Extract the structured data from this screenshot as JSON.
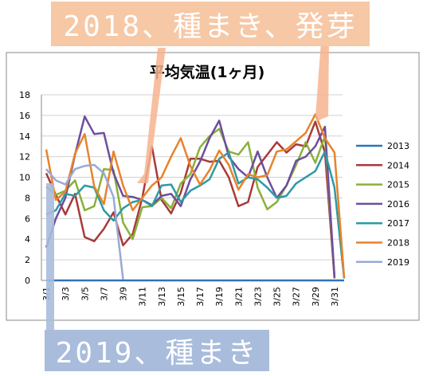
{
  "annotations": {
    "top": "2018、種まき、発芽",
    "bottom": "2019、種まき"
  },
  "chart_data": {
    "type": "line",
    "title": "平均気温(1ヶ月)",
    "xlabel": "",
    "ylabel": "",
    "ylim": [
      0,
      18
    ],
    "yticks": [
      0,
      2,
      4,
      6,
      8,
      10,
      12,
      14,
      16,
      18
    ],
    "grid": true,
    "legend": "right",
    "x": [
      "3/1",
      "3/2",
      "3/3",
      "3/4",
      "3/5",
      "3/6",
      "3/7",
      "3/8",
      "3/9",
      "3/10",
      "3/11",
      "3/12",
      "3/13",
      "3/14",
      "3/15",
      "3/16",
      "3/17",
      "3/18",
      "3/19",
      "3/20",
      "3/21",
      "3/22",
      "3/23",
      "3/24",
      "3/25",
      "3/26",
      "3/27",
      "3/28",
      "3/29",
      "3/30",
      "3/31",
      "4/1"
    ],
    "x_tick_labels": [
      "3/1",
      "3/3",
      "3/5",
      "3/7",
      "3/9",
      "3/11",
      "3/13",
      "3/15",
      "3/17",
      "3/19",
      "3/21",
      "3/23",
      "3/25",
      "3/27",
      "3/29",
      "3/31"
    ],
    "series": [
      {
        "name": "2013",
        "color": "#2e74b5",
        "values": [
          0,
          0,
          0,
          0,
          0,
          0,
          0,
          0,
          0,
          0,
          0,
          0,
          0,
          0,
          0,
          0,
          0,
          0,
          0,
          0,
          0,
          0,
          0,
          0,
          0,
          0,
          0,
          0,
          0,
          0,
          0,
          0
        ]
      },
      {
        "name": "2014",
        "color": "#a83a3a",
        "values": [
          10.4,
          8.3,
          6.4,
          8.4,
          4.2,
          3.8,
          5.0,
          6.6,
          3.4,
          4.5,
          8.0,
          13.0,
          7.8,
          6.5,
          8.5,
          11.8,
          11.8,
          11.5,
          11.6,
          10.0,
          7.2,
          7.6,
          11.0,
          12.2,
          13.4,
          12.4,
          13.2,
          13.0,
          15.4,
          12.4,
          0.2,
          null
        ]
      },
      {
        "name": "2015",
        "color": "#8ab03a",
        "values": [
          9.1,
          8.3,
          8.7,
          9.7,
          6.8,
          7.2,
          10.8,
          10.7,
          5.6,
          4.0,
          7.1,
          7.2,
          8.0,
          7.0,
          9.4,
          10.3,
          12.9,
          14.0,
          14.7,
          12.5,
          12.2,
          13.4,
          9.0,
          6.9,
          7.6,
          9.2,
          11.2,
          13.4,
          11.4,
          14.0,
          0.3,
          null
        ]
      },
      {
        "name": "2016",
        "color": "#6d4e9c",
        "values": [
          3.2,
          6.0,
          8.0,
          12.2,
          15.9,
          14.2,
          14.3,
          10.4,
          8.2,
          8.1,
          7.8,
          7.3,
          8.2,
          8.4,
          7.2,
          9.8,
          11.5,
          13.8,
          15.5,
          12.0,
          10.8,
          10.0,
          12.5,
          10.0,
          8.0,
          9.2,
          11.6,
          12.0,
          13.0,
          14.9,
          0.3,
          null
        ]
      },
      {
        "name": "2017",
        "color": "#2e9aa6",
        "values": [
          6.4,
          6.8,
          8.4,
          8.2,
          9.2,
          9.0,
          6.8,
          5.8,
          7.0,
          7.6,
          7.8,
          7.2,
          9.2,
          9.3,
          7.6,
          8.7,
          9.2,
          9.8,
          11.8,
          12.4,
          9.4,
          10.0,
          9.8,
          9.0,
          8.0,
          8.2,
          9.4,
          10.0,
          10.6,
          12.5,
          9.0,
          0.2
        ]
      },
      {
        "name": "2018",
        "color": "#e8832a",
        "values": [
          12.7,
          7.8,
          8.6,
          12.3,
          14.2,
          9.1,
          7.4,
          12.5,
          9.2,
          6.8,
          8.0,
          9.2,
          10.0,
          12.0,
          13.8,
          11.1,
          9.3,
          10.7,
          12.6,
          11.2,
          8.8,
          10.3,
          10.0,
          10.2,
          12.5,
          12.7,
          13.5,
          14.3,
          16.1,
          13.8,
          12.4,
          0.3
        ]
      },
      {
        "name": "2019",
        "color": "#9aa9d6",
        "values": [
          10.8,
          9.7,
          9.3,
          10.8,
          11.1,
          11.2,
          10.4,
          8.1,
          0.1,
          null,
          null,
          null,
          null,
          null,
          null,
          null,
          null,
          null,
          null,
          null,
          null,
          null,
          null,
          null,
          null,
          null,
          null,
          null,
          null,
          null,
          null,
          null
        ]
      }
    ]
  }
}
